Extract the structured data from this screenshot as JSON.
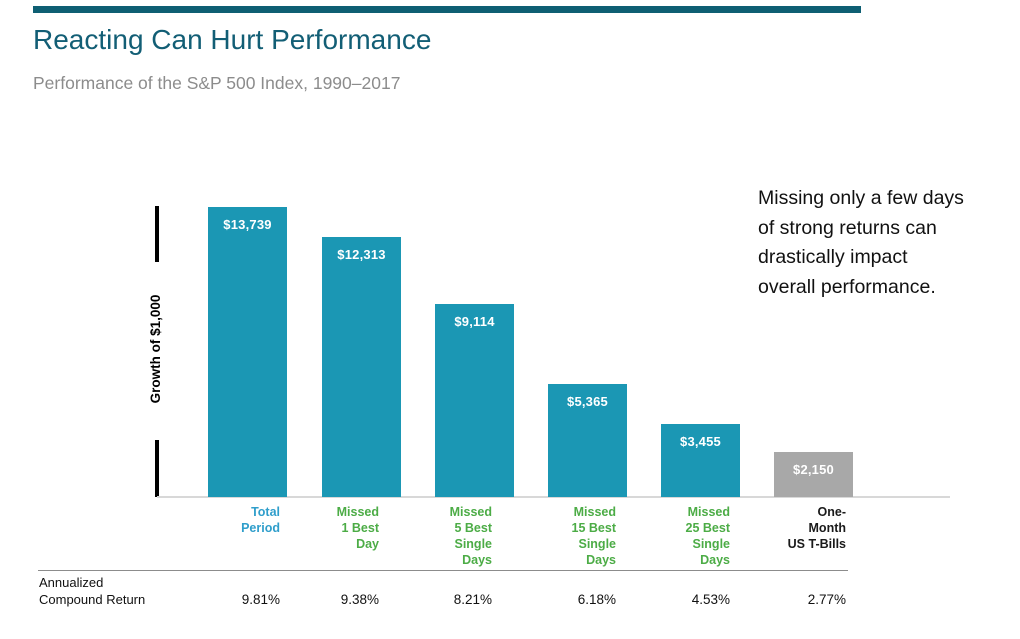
{
  "header": {
    "title": "Reacting Can Hurt Performance",
    "subtitle": "Performance of the S&P 500 Index, 1990–2017",
    "title_color": "#125E75",
    "subtitle_color": "#8C8C8C",
    "top_rule_color": "#0E5F73"
  },
  "annotation": {
    "full_text": "Missing only a few days of strong returns can drastically impact overall performance.",
    "lines": [
      "Missing only a few days",
      "of strong returns can",
      "drastically impact",
      "overall performance."
    ]
  },
  "chart_data": {
    "type": "bar",
    "title": "Reacting Can Hurt Performance",
    "subtitle": "Performance of the S&P 500 Index, 1990–2017",
    "ylabel": "Growth of $1,000",
    "xlabel": "",
    "ylim": [
      0,
      14000
    ],
    "grid": false,
    "legend": false,
    "categories": [
      "Total Period",
      "Missed 1 Best Day",
      "Missed 5 Best Single Days",
      "Missed 15 Best Single Days",
      "Missed 25 Best Single Days",
      "One-Month US T-Bills"
    ],
    "values": [
      13739,
      12313,
      9114,
      5365,
      3455,
      2150
    ],
    "value_labels": [
      "$13,739",
      "$12,313",
      "$9,114",
      "$5,365",
      "$3,455",
      "$2,150"
    ],
    "bar_colors": [
      "#1B97B4",
      "#1B97B4",
      "#1B97B4",
      "#1B97B4",
      "#1B97B4",
      "#A8A8A8"
    ],
    "footer_row": {
      "label_line1": "Annualized",
      "label_line2": "Compound Return",
      "values": [
        "9.81%",
        "9.38%",
        "8.21%",
        "6.18%",
        "4.53%",
        "2.77%"
      ]
    },
    "columns": [
      {
        "value": 13739,
        "value_label": "$13,739",
        "return": "9.81%",
        "label_lines": [
          "Total",
          "Period"
        ],
        "label_color": "#2F9ECB",
        "bar_color": "#1B97B4"
      },
      {
        "value": 12313,
        "value_label": "$12,313",
        "return": "9.38%",
        "label_lines": [
          "Missed",
          "1 Best",
          "Day"
        ],
        "label_color": "#4CAC46",
        "bar_color": "#1B97B4"
      },
      {
        "value": 9114,
        "value_label": "$9,114",
        "return": "8.21%",
        "label_lines": [
          "Missed",
          "5 Best",
          "Single",
          "Days"
        ],
        "label_color": "#4CAC46",
        "bar_color": "#1B97B4"
      },
      {
        "value": 5365,
        "value_label": "$5,365",
        "return": "6.18%",
        "label_lines": [
          "Missed",
          "15 Best",
          "Single",
          "Days"
        ],
        "label_color": "#4CAC46",
        "bar_color": "#1B97B4"
      },
      {
        "value": 3455,
        "value_label": "$3,455",
        "return": "4.53%",
        "label_lines": [
          "Missed",
          "25 Best",
          "Single",
          "Days"
        ],
        "label_color": "#4CAC46",
        "bar_color": "#1B97B4"
      },
      {
        "value": 2150,
        "value_label": "$2,150",
        "return": "2.77%",
        "label_lines": [
          "One-",
          "Month",
          "US T-Bills"
        ],
        "label_color": "#1A1A1A",
        "bar_color": "#A8A8A8"
      }
    ]
  },
  "palette": {
    "bar_teal": "#1B97B4",
    "bar_gray": "#A8A8A8",
    "label_teal": "#2F9ECB",
    "label_green": "#4CAC46",
    "title_teal": "#125E75",
    "subtitle_gray": "#8C8C8C",
    "baseline_gray": "#D8D8D8",
    "divider_gray": "#8C8C8C",
    "text_black": "#111111"
  }
}
